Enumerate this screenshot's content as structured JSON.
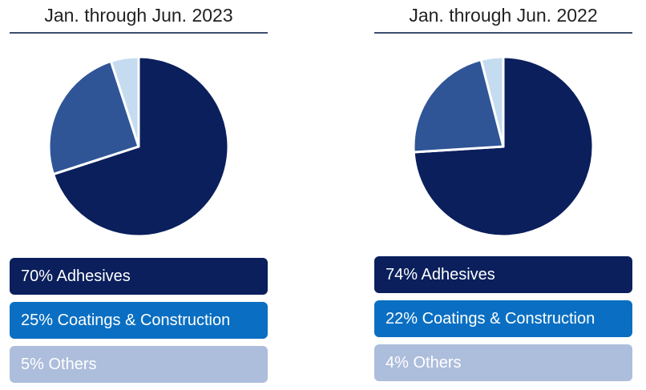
{
  "chart_data": [
    {
      "type": "pie",
      "title": "Jan. through Jun. 2023",
      "slices": [
        {
          "label": "70% Adhesives",
          "value": 70,
          "color": "#0a1f5c"
        },
        {
          "label": "25% Coatings & Construction",
          "value": 25,
          "color": "#2f5597"
        },
        {
          "label": "5% Others",
          "value": 5,
          "color": "#c5dbf0"
        }
      ],
      "legend_colors": [
        "#0a1f5c",
        "#0a6fc2",
        "#adbddc"
      ]
    },
    {
      "type": "pie",
      "title": "Jan. through Jun. 2022",
      "slices": [
        {
          "label": "74% Adhesives",
          "value": 74,
          "color": "#0a1f5c"
        },
        {
          "label": "22% Coatings & Construction",
          "value": 22,
          "color": "#2f5597"
        },
        {
          "label": "4% Others",
          "value": 4,
          "color": "#c5dbf0"
        }
      ],
      "legend_colors": [
        "#0a1f5c",
        "#0a6fc2",
        "#adbddc"
      ]
    }
  ]
}
